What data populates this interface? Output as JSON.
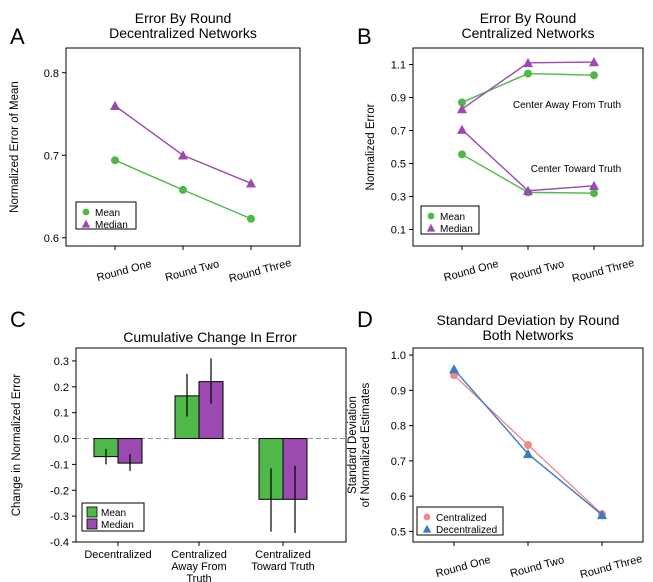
{
  "colors": {
    "mean": "#4fb848",
    "median": "#9b4bb0",
    "centralized": "#f08b8b",
    "decentralized": "#3b7cc0"
  },
  "chart_data": [
    {
      "panel": "A",
      "type": "line",
      "title": [
        "Error By Round",
        "Decentralized Networks"
      ],
      "ylabel": "Normalized Error of Mean",
      "ylim": [
        0.59,
        0.83
      ],
      "yticks": [
        0.6,
        0.7,
        0.8
      ],
      "categories": [
        "Round One",
        "Round Two",
        "Round Three"
      ],
      "series": [
        {
          "name": "Mean",
          "marker": "circle",
          "values": [
            0.694,
            0.658,
            0.623
          ]
        },
        {
          "name": "Median",
          "marker": "triangle",
          "values": [
            0.76,
            0.7,
            0.666
          ]
        }
      ],
      "legend": "bottom-left"
    },
    {
      "panel": "B",
      "type": "line",
      "title": [
        "Error By Round",
        "Centralized Networks"
      ],
      "ylabel": "Normalized Error",
      "ylim": [
        0.0,
        1.2
      ],
      "yticks": [
        0.1,
        0.3,
        0.5,
        0.7,
        0.9,
        1.1
      ],
      "categories": [
        "Round One",
        "Round Two",
        "Round Three"
      ],
      "series": [
        {
          "name": "Mean",
          "group": "away",
          "marker": "circle",
          "values": [
            0.87,
            1.045,
            1.035
          ]
        },
        {
          "name": "Median",
          "group": "away",
          "marker": "triangle",
          "values": [
            0.83,
            1.11,
            1.115
          ]
        },
        {
          "name": "Mean",
          "group": "toward",
          "marker": "circle",
          "values": [
            0.555,
            0.325,
            0.32
          ]
        },
        {
          "name": "Median",
          "group": "toward",
          "marker": "triangle",
          "values": [
            0.705,
            0.335,
            0.365
          ]
        }
      ],
      "annotations": [
        "Center Away From Truth",
        "Center Toward Truth"
      ],
      "legend": "bottom-left"
    },
    {
      "panel": "C",
      "type": "bar",
      "title": "Cumulative Change In Error",
      "ylabel": "Change in Normalized Error",
      "ylim": [
        -0.4,
        0.35
      ],
      "yticks": [
        -0.4,
        -0.3,
        -0.2,
        -0.1,
        0.0,
        0.1,
        0.2,
        0.3
      ],
      "categories": [
        "Decentralized",
        "Centralized Away From Truth",
        "Centralized Toward Truth"
      ],
      "series": [
        {
          "name": "Mean",
          "values": [
            -0.07,
            0.165,
            -0.235
          ],
          "error_low": [
            -0.1,
            0.085,
            -0.36
          ],
          "error_high": [
            -0.04,
            0.25,
            -0.115
          ]
        },
        {
          "name": "Median",
          "values": [
            -0.095,
            0.22,
            -0.235
          ],
          "error_low": [
            -0.125,
            0.135,
            -0.365
          ],
          "error_high": [
            -0.06,
            0.31,
            -0.105
          ]
        }
      ],
      "legend": "bottom-left"
    },
    {
      "panel": "D",
      "type": "line",
      "title": [
        "Standard Deviation by Round",
        "Both Networks"
      ],
      "ylabel": [
        "Standard Deviation",
        "of Normalized Estimates"
      ],
      "ylim": [
        0.47,
        1.02
      ],
      "yticks": [
        0.5,
        0.6,
        0.7,
        0.8,
        0.9,
        1.0
      ],
      "categories": [
        "Round One",
        "Round Two",
        "Round Three"
      ],
      "series": [
        {
          "name": "Centralized",
          "marker": "circle",
          "values": [
            0.943,
            0.745,
            0.549
          ]
        },
        {
          "name": "Decentralized",
          "marker": "triangle",
          "values": [
            0.96,
            0.72,
            0.547
          ]
        }
      ],
      "legend": "bottom-left"
    }
  ]
}
